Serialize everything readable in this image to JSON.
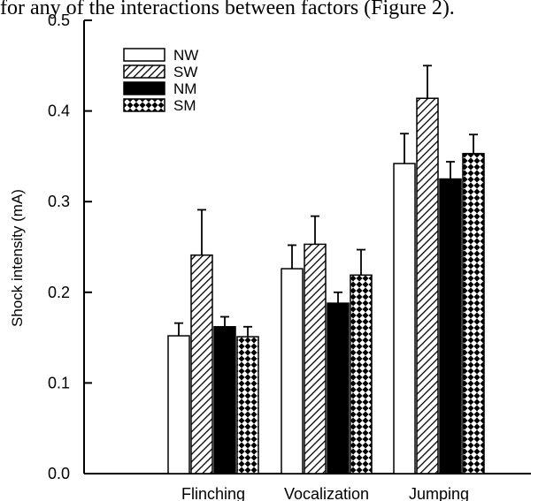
{
  "caption_fragment": "for any of the interactions between factors (Figure 2).",
  "chart_data": {
    "type": "bar",
    "title": "",
    "xlabel": "",
    "ylabel": "Shock intensity (mA)",
    "ylim": [
      0,
      0.5
    ],
    "yticks": [
      "0.0",
      "0.1",
      "0.2",
      "0.3",
      "0.4",
      "0.5"
    ],
    "categories": [
      "Flinching",
      "Vocalization",
      "Jumping"
    ],
    "series": [
      {
        "name": "NW",
        "pattern": "white",
        "values": [
          0.152,
          0.226,
          0.342
        ],
        "errors": [
          0.014,
          0.026,
          0.033
        ]
      },
      {
        "name": "SW",
        "pattern": "hatch",
        "values": [
          0.241,
          0.253,
          0.414
        ],
        "errors": [
          0.05,
          0.031,
          0.036
        ]
      },
      {
        "name": "NM",
        "pattern": "black",
        "values": [
          0.162,
          0.188,
          0.325
        ],
        "errors": [
          0.011,
          0.012,
          0.019
        ]
      },
      {
        "name": "SM",
        "pattern": "crosshatch",
        "values": [
          0.151,
          0.219,
          0.353
        ],
        "errors": [
          0.011,
          0.028,
          0.021
        ]
      }
    ],
    "legend_position": "top-left",
    "grid": false,
    "colors": {
      "axis": "#000000",
      "white_fill": "#ffffff",
      "black_fill": "#000000"
    }
  }
}
